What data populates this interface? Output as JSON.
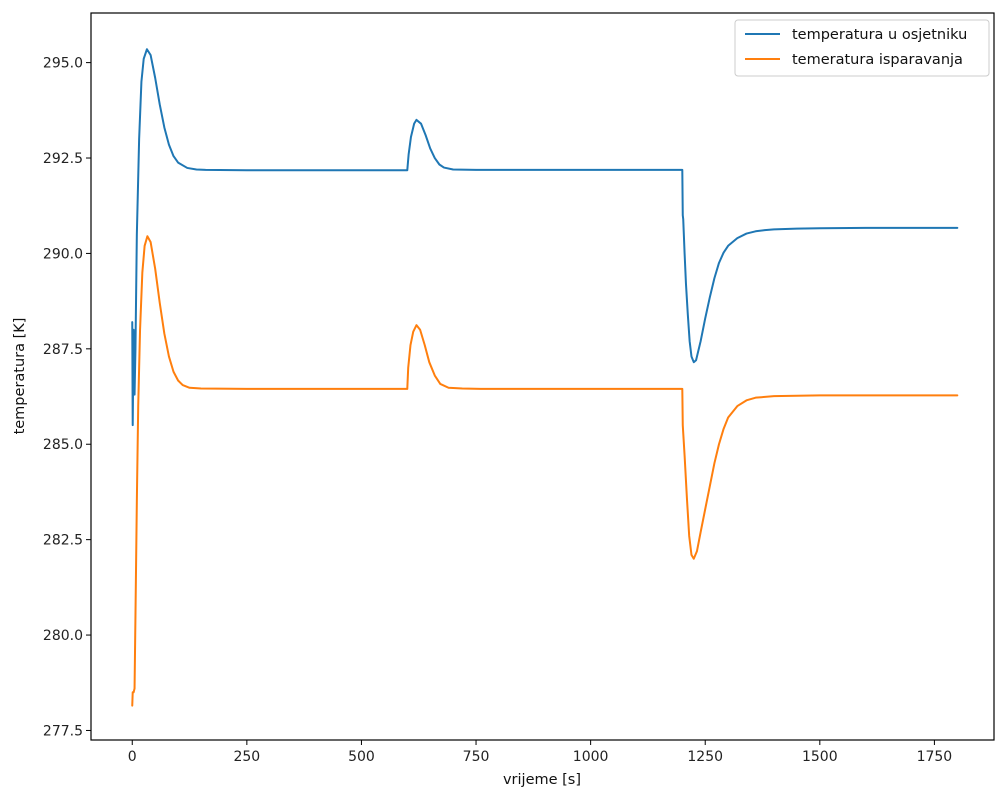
{
  "chart_data": {
    "type": "line",
    "xlabel": "vrijeme [s]",
    "ylabel": "temperatura [K]",
    "xlim": [
      -90,
      1880
    ],
    "ylim": [
      277.25,
      296.3
    ],
    "xticks": [
      0,
      250,
      500,
      750,
      1000,
      1250,
      1500,
      1750
    ],
    "xtick_labels": [
      "0",
      "250",
      "500",
      "750",
      "1000",
      "1250",
      "1500",
      "1750"
    ],
    "yticks": [
      277.5,
      280.0,
      282.5,
      285.0,
      287.5,
      290.0,
      292.5,
      295.0
    ],
    "ytick_labels": [
      "277.5",
      "280.0",
      "282.5",
      "285.0",
      "287.5",
      "290.0",
      "292.5",
      "295.0"
    ],
    "grid": false,
    "legend_position": "top-right",
    "series": [
      {
        "name": "temperatura u osjetniku",
        "color": "#1f77b4",
        "points": [
          [
            0,
            288.2
          ],
          [
            1,
            285.5
          ],
          [
            3,
            288.0
          ],
          [
            5,
            286.3
          ],
          [
            7,
            287.5
          ],
          [
            10,
            290.5
          ],
          [
            15,
            293.0
          ],
          [
            20,
            294.5
          ],
          [
            25,
            295.1
          ],
          [
            32,
            295.35
          ],
          [
            40,
            295.2
          ],
          [
            50,
            294.6
          ],
          [
            60,
            293.9
          ],
          [
            70,
            293.3
          ],
          [
            80,
            292.85
          ],
          [
            90,
            292.55
          ],
          [
            100,
            292.38
          ],
          [
            120,
            292.24
          ],
          [
            140,
            292.2
          ],
          [
            160,
            292.19
          ],
          [
            250,
            292.18
          ],
          [
            500,
            292.18
          ],
          [
            600,
            292.18
          ],
          [
            603,
            292.6
          ],
          [
            608,
            293.05
          ],
          [
            615,
            293.4
          ],
          [
            620,
            293.5
          ],
          [
            630,
            293.4
          ],
          [
            640,
            293.1
          ],
          [
            650,
            292.75
          ],
          [
            660,
            292.5
          ],
          [
            670,
            292.33
          ],
          [
            680,
            292.25
          ],
          [
            700,
            292.2
          ],
          [
            750,
            292.19
          ],
          [
            1000,
            292.19
          ],
          [
            1200,
            292.19
          ],
          [
            1201,
            291.0
          ],
          [
            1202,
            290.9
          ],
          [
            1203,
            290.6
          ],
          [
            1205,
            290.0
          ],
          [
            1208,
            289.2
          ],
          [
            1212,
            288.4
          ],
          [
            1216,
            287.7
          ],
          [
            1220,
            287.3
          ],
          [
            1225,
            287.15
          ],
          [
            1230,
            287.2
          ],
          [
            1240,
            287.7
          ],
          [
            1250,
            288.3
          ],
          [
            1260,
            288.85
          ],
          [
            1270,
            289.35
          ],
          [
            1280,
            289.75
          ],
          [
            1290,
            290.02
          ],
          [
            1300,
            290.2
          ],
          [
            1320,
            290.4
          ],
          [
            1340,
            290.52
          ],
          [
            1360,
            290.58
          ],
          [
            1380,
            290.61
          ],
          [
            1400,
            290.63
          ],
          [
            1450,
            290.65
          ],
          [
            1500,
            290.66
          ],
          [
            1600,
            290.67
          ],
          [
            1800,
            290.67
          ]
        ]
      },
      {
        "name": "temeratura isparavanja",
        "color": "#ff7f0e",
        "points": [
          [
            0,
            278.15
          ],
          [
            1,
            278.5
          ],
          [
            3,
            278.5
          ],
          [
            5,
            278.6
          ],
          [
            7,
            280.5
          ],
          [
            10,
            283.5
          ],
          [
            13,
            286.0
          ],
          [
            17,
            288.0
          ],
          [
            22,
            289.5
          ],
          [
            27,
            290.2
          ],
          [
            33,
            290.45
          ],
          [
            40,
            290.3
          ],
          [
            50,
            289.6
          ],
          [
            60,
            288.7
          ],
          [
            70,
            287.9
          ],
          [
            80,
            287.3
          ],
          [
            90,
            286.9
          ],
          [
            100,
            286.67
          ],
          [
            110,
            286.55
          ],
          [
            125,
            286.48
          ],
          [
            150,
            286.46
          ],
          [
            250,
            286.45
          ],
          [
            600,
            286.45
          ],
          [
            602,
            287.0
          ],
          [
            607,
            287.6
          ],
          [
            613,
            287.95
          ],
          [
            620,
            288.12
          ],
          [
            628,
            288.0
          ],
          [
            638,
            287.6
          ],
          [
            648,
            287.15
          ],
          [
            660,
            286.8
          ],
          [
            672,
            286.58
          ],
          [
            690,
            286.48
          ],
          [
            720,
            286.46
          ],
          [
            760,
            286.45
          ],
          [
            1200,
            286.45
          ],
          [
            1201,
            285.5
          ],
          [
            1205,
            284.7
          ],
          [
            1210,
            283.6
          ],
          [
            1215,
            282.6
          ],
          [
            1220,
            282.1
          ],
          [
            1225,
            282.0
          ],
          [
            1232,
            282.2
          ],
          [
            1240,
            282.7
          ],
          [
            1250,
            283.3
          ],
          [
            1260,
            283.9
          ],
          [
            1270,
            284.5
          ],
          [
            1280,
            285.0
          ],
          [
            1290,
            285.4
          ],
          [
            1300,
            285.7
          ],
          [
            1320,
            286.0
          ],
          [
            1340,
            286.15
          ],
          [
            1360,
            286.22
          ],
          [
            1400,
            286.26
          ],
          [
            1500,
            286.28
          ],
          [
            1800,
            286.28
          ]
        ]
      }
    ]
  }
}
